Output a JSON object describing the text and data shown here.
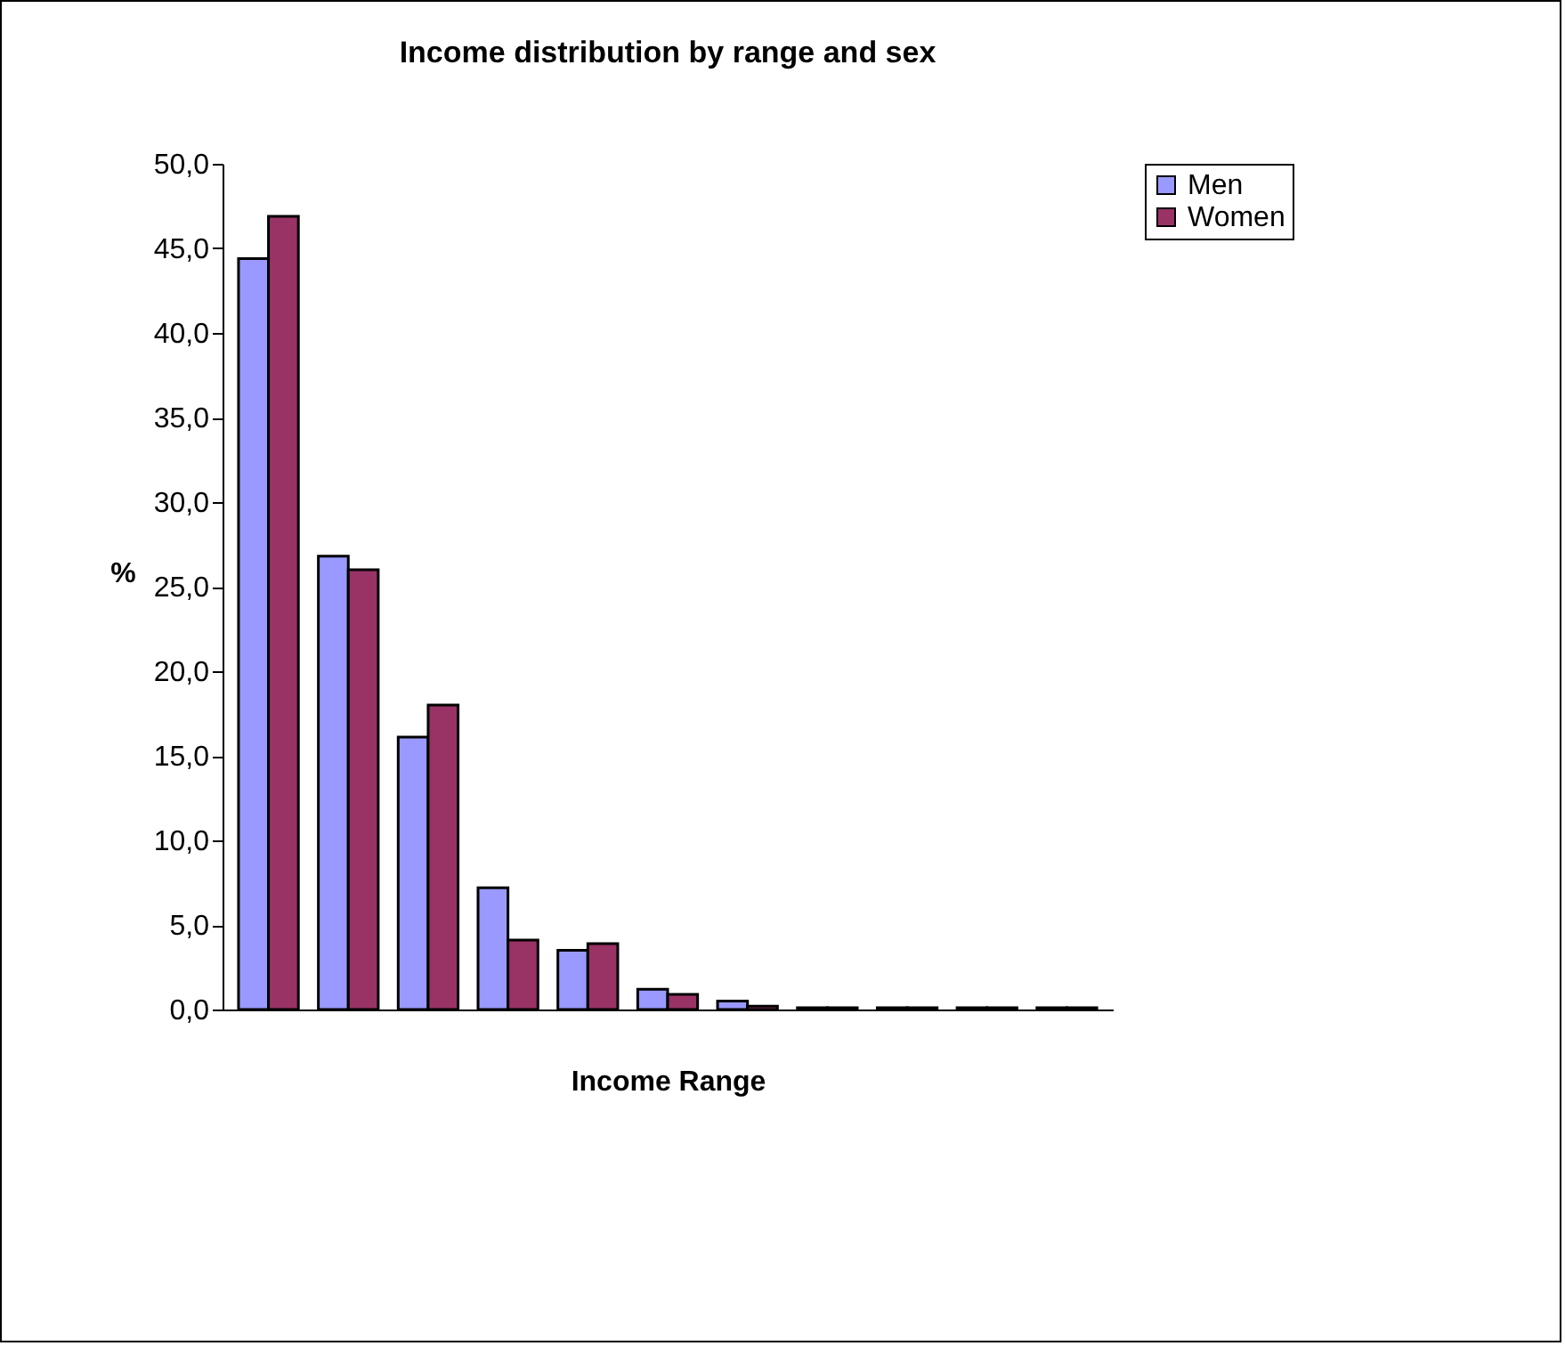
{
  "chart_data": {
    "type": "bar",
    "title": "Income distribution by range and sex",
    "xlabel": "Income Range",
    "ylabel": "%",
    "categories": [
      null,
      null,
      null,
      null,
      null,
      null,
      null,
      null,
      null,
      null,
      null
    ],
    "series": [
      {
        "name": "Men",
        "color": "#9999ff",
        "values": [
          44.4,
          26.8,
          16.1,
          7.2,
          3.5,
          1.2,
          0.5,
          0.1,
          0.1,
          0.1,
          0.1
        ]
      },
      {
        "name": "Women",
        "color": "#993366",
        "values": [
          46.9,
          26.0,
          18.0,
          4.1,
          3.9,
          0.9,
          0.2,
          0.1,
          0.1,
          0.1,
          0.1
        ]
      }
    ],
    "ylim": [
      0,
      50
    ],
    "yticks": [
      {
        "value": 0,
        "label": "0,0"
      },
      {
        "value": 5,
        "label": "5,0"
      },
      {
        "value": 10,
        "label": "10,0"
      },
      {
        "value": 15,
        "label": "15,0"
      },
      {
        "value": 20,
        "label": "20,0"
      },
      {
        "value": 25,
        "label": "25,0"
      },
      {
        "value": 30,
        "label": "30,0"
      },
      {
        "value": 35,
        "label": "35,0"
      },
      {
        "value": 40,
        "label": "40,0"
      },
      {
        "value": 45,
        "label": "45,0"
      },
      {
        "value": 50,
        "label": "50,0"
      }
    ],
    "grid": false,
    "legend": "right"
  }
}
